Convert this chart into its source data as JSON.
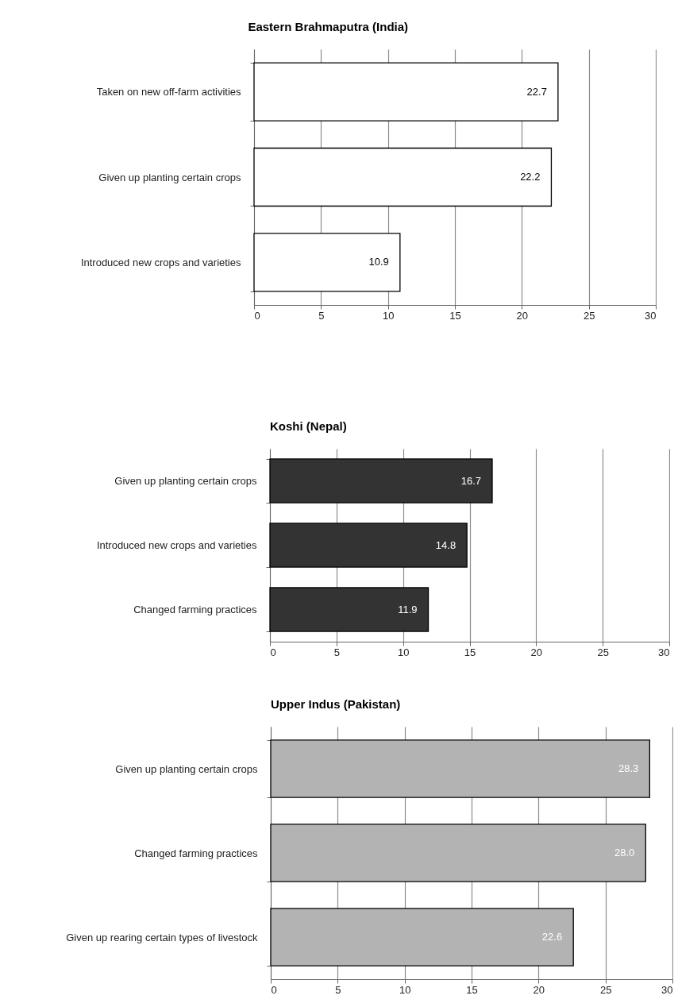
{
  "chart_data": [
    {
      "type": "bar",
      "orientation": "horizontal",
      "title": "Eastern Brahmaputra (India)",
      "categories": [
        "Taken on new off-farm activities",
        "Given up planting certain crops",
        "Introduced new crops and varieties"
      ],
      "values": [
        22.7,
        22.2,
        10.9
      ],
      "value_labels": [
        "22.7",
        "22.2",
        "10.9"
      ],
      "color": "#ffffff",
      "xlim": [
        0,
        30
      ],
      "xticks": [
        0,
        5,
        10,
        15,
        20,
        25,
        30
      ],
      "grid": "x"
    },
    {
      "type": "bar",
      "orientation": "horizontal",
      "title": "Koshi (Nepal)",
      "categories": [
        "Given up planting certain crops",
        "Introduced new crops and varieties",
        "Changed farming  practices"
      ],
      "values": [
        16.7,
        14.8,
        11.9
      ],
      "value_labels": [
        "16.7",
        "14.8",
        "11.9"
      ],
      "color": "#333333",
      "xlim": [
        0,
        30
      ],
      "xticks": [
        0,
        5,
        10,
        15,
        20,
        25,
        30
      ],
      "grid": "x"
    },
    {
      "type": "bar",
      "orientation": "horizontal",
      "title": "Upper Indus (Pakistan)",
      "categories": [
        "Given up planting certain crops",
        "Changed farming  practices",
        "Given up rearing certain types of livestock"
      ],
      "values": [
        28.3,
        28.0,
        22.6
      ],
      "value_labels": [
        "28.3",
        "28.0",
        "22.6"
      ],
      "color": "#b3b3b3",
      "xlim": [
        0,
        30
      ],
      "xticks": [
        0,
        5,
        10,
        15,
        20,
        25,
        30
      ],
      "grid": "x"
    }
  ]
}
